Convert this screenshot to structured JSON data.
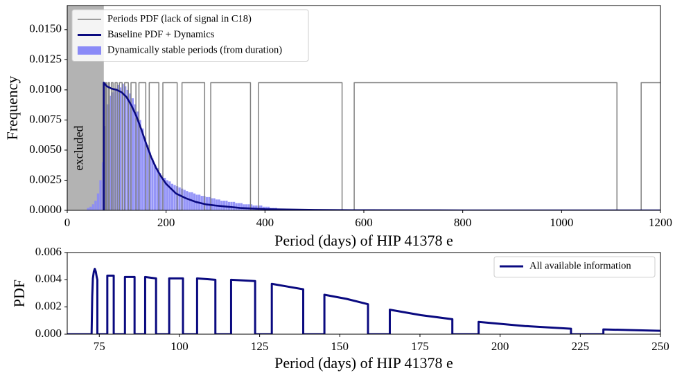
{
  "chart_data": [
    {
      "type": "histogram",
      "xlabel": "Period (days) of HIP 41378 e",
      "ylabel": "Frequency",
      "xlim": [
        0,
        1200
      ],
      "ylim": [
        0,
        0.017
      ],
      "xticks": [
        0,
        200,
        400,
        600,
        800,
        1000,
        1200
      ],
      "yticks": [
        {
          "value": 0,
          "label": "0.0000"
        },
        {
          "value": 0.0025,
          "label": "0.0025"
        },
        {
          "value": 0.005,
          "label": "0.0050"
        },
        {
          "value": 0.0075,
          "label": "0.0075"
        },
        {
          "value": 0.01,
          "label": "0.0100"
        },
        {
          "value": 0.0125,
          "label": "0.0125"
        },
        {
          "value": 0.015,
          "label": "0.0150"
        }
      ],
      "legend": "upper left",
      "shaded_region": {
        "x": [
          0,
          74
        ],
        "label": "excluded",
        "color": "#b3b3b3"
      },
      "series": [
        {
          "name": "Periods PDF (lack of signal in C18)",
          "type": "line",
          "color": "#808080",
          "x": [
            72.6,
            72.6,
            74.1,
            74.1,
            77.4,
            77.4,
            79.4,
            79.4,
            82.9,
            82.9,
            85.5,
            85.5,
            89.3,
            89.3,
            92.7,
            92.7,
            96.8,
            96.8,
            101.1,
            101.1,
            105.5,
            105.5,
            111.2,
            111.2,
            116.1,
            116.1,
            123.6,
            123.6,
            129.0,
            129.0,
            139.0,
            139.0,
            145.1,
            145.1,
            158.9,
            158.9,
            165.9,
            165.9,
            185.3,
            185.3,
            193.5,
            193.5,
            222.4,
            222.4,
            232.2,
            232.2,
            278.0,
            278.0,
            290.3,
            290.3,
            370.7,
            370.7,
            387.0,
            387.0,
            556.0,
            556.0,
            580.5,
            580.5,
            1112.0,
            1112.0,
            1161,
            1161,
            1200
          ],
          "values": [
            0,
            0.0106,
            0.0106,
            0,
            0,
            0.0106,
            0.0106,
            0,
            0,
            0.0106,
            0.0106,
            0,
            0,
            0.0106,
            0.0106,
            0,
            0,
            0.0106,
            0.0106,
            0,
            0,
            0.0106,
            0.0106,
            0,
            0,
            0.0106,
            0.0106,
            0,
            0,
            0.0106,
            0.0106,
            0,
            0,
            0.0106,
            0.0106,
            0,
            0,
            0.0106,
            0.0106,
            0,
            0,
            0.0106,
            0.0106,
            0,
            0,
            0.0106,
            0.0106,
            0,
            0,
            0.0106,
            0.0106,
            0,
            0,
            0.0106,
            0.0106,
            0,
            0,
            0.0106,
            0.0106,
            0,
            0,
            0.0106,
            0.0106
          ]
        },
        {
          "name": "Baseline PDF + Dynamics",
          "type": "line",
          "color": "#0a0a80",
          "x": [
            74,
            74,
            80,
            90,
            100,
            110,
            120,
            130,
            140,
            150,
            160,
            170,
            180,
            190,
            200,
            220,
            240,
            260,
            280,
            300,
            350,
            400,
            500,
            600,
            800,
            1000,
            1200
          ],
          "values": [
            0,
            0.0106,
            0.0103,
            0.0101,
            0.01,
            0.0098,
            0.0094,
            0.0087,
            0.0078,
            0.0067,
            0.0055,
            0.0044,
            0.0035,
            0.0028,
            0.0022,
            0.0014,
            0.001,
            0.0007,
            0.0005,
            0.0004,
            0.0002,
            0.0001,
            3e-05,
            1e-05,
            0,
            0,
            0
          ]
        },
        {
          "name": "Dynamically stable periods (from duration)",
          "type": "histogram",
          "color": "#8a8af7",
          "bins": [
            40,
            45,
            50,
            55,
            60,
            65,
            70,
            75,
            80,
            85,
            90,
            95,
            100,
            105,
            110,
            115,
            120,
            125,
            130,
            135,
            140,
            145,
            150,
            155,
            160,
            165,
            170,
            175,
            180,
            185,
            190,
            195,
            200,
            205,
            210,
            215,
            220,
            225,
            230,
            235,
            240,
            245,
            250,
            255,
            260,
            265,
            270,
            275,
            280,
            285,
            290,
            295,
            300,
            305,
            310,
            315,
            320,
            325,
            330,
            335,
            340,
            345,
            350,
            355,
            360,
            365,
            370,
            375,
            380,
            385,
            390,
            395,
            400,
            405,
            410,
            415,
            420,
            425,
            430,
            435,
            440
          ],
          "values": [
            0.0002,
            0.0003,
            0.0005,
            0.0008,
            0.0014,
            0.0025,
            0.004,
            0.007,
            0.0088,
            0.0095,
            0.0098,
            0.0101,
            0.0104,
            0.0102,
            0.0105,
            0.0103,
            0.01,
            0.0097,
            0.0093,
            0.0088,
            0.0082,
            0.0075,
            0.0068,
            0.006,
            0.0054,
            0.0048,
            0.0043,
            0.0038,
            0.0035,
            0.0031,
            0.0029,
            0.0027,
            0.0025,
            0.0024,
            0.0022,
            0.0021,
            0.002,
            0.0019,
            0.0018,
            0.0017,
            0.0016,
            0.0015,
            0.0015,
            0.0014,
            0.0013,
            0.0013,
            0.0012,
            0.0012,
            0.0011,
            0.0011,
            0.001,
            0.001,
            0.0009,
            0.0009,
            0.0008,
            0.0008,
            0.0008,
            0.0007,
            0.0007,
            0.0007,
            0.0006,
            0.0006,
            0.0006,
            0.0005,
            0.0005,
            0.0005,
            0.0005,
            0.0004,
            0.0004,
            0.0004,
            0.0004,
            0.0003,
            0.0003,
            0.0003,
            0.0002,
            0.0002,
            0.0002,
            0.0001,
            0.0001,
            0.0001
          ]
        }
      ]
    },
    {
      "type": "line",
      "xlabel": "Period (days) of HIP 41378 e",
      "ylabel": "PDF",
      "xlim": [
        65,
        250
      ],
      "ylim": [
        0,
        0.006
      ],
      "xticks": [
        75,
        100,
        125,
        150,
        175,
        200,
        225,
        250
      ],
      "yticks": [
        {
          "value": 0,
          "label": "0.000"
        },
        {
          "value": 0.002,
          "label": "0.002"
        },
        {
          "value": 0.004,
          "label": "0.004"
        },
        {
          "value": 0.006,
          "label": "0.006"
        }
      ],
      "legend": "upper right",
      "series": [
        {
          "name": "All available information",
          "type": "line",
          "color": "#0a0a80",
          "x": [
            65,
            72.6,
            72.8,
            73.0,
            73.3,
            73.6,
            73.9,
            74.2,
            74.4,
            74.4,
            77.5,
            77.5,
            79.5,
            79.5,
            83.0,
            83.0,
            86.0,
            86.0,
            89.3,
            89.3,
            92.7,
            92.7,
            96.8,
            96.8,
            101.1,
            101.1,
            105.5,
            105.5,
            111.2,
            111.2,
            116.1,
            116.1,
            123.6,
            123.6,
            128.8,
            128.8,
            133.7,
            138.6,
            138.6,
            145.2,
            145.2,
            152.0,
            158.8,
            158.8,
            165.6,
            165.6,
            175.3,
            185.1,
            185.1,
            193.3,
            193.3,
            207.7,
            222.1,
            222.1,
            232.2,
            232.2,
            241.1,
            250
          ],
          "values": [
            0,
            0,
            0.0028,
            0.0041,
            0.0046,
            0.0048,
            0.0046,
            0.0042,
            0.004,
            0,
            0,
            0.0043,
            0.0043,
            0,
            0,
            0.0042,
            0.0042,
            0,
            0,
            0.0042,
            0.0041,
            0,
            0,
            0.0041,
            0.0041,
            0,
            0,
            0.0041,
            0.004,
            0,
            0,
            0.004,
            0.0039,
            0,
            0,
            0.0037,
            0.0035,
            0.0033,
            0,
            0,
            0.0029,
            0.0026,
            0.0022,
            0,
            0,
            0.0018,
            0.0014,
            0.0011,
            0,
            0,
            0.0009,
            0.0006,
            0.0004,
            0,
            0,
            0.00035,
            0.0003,
            0.00025
          ]
        }
      ]
    }
  ]
}
